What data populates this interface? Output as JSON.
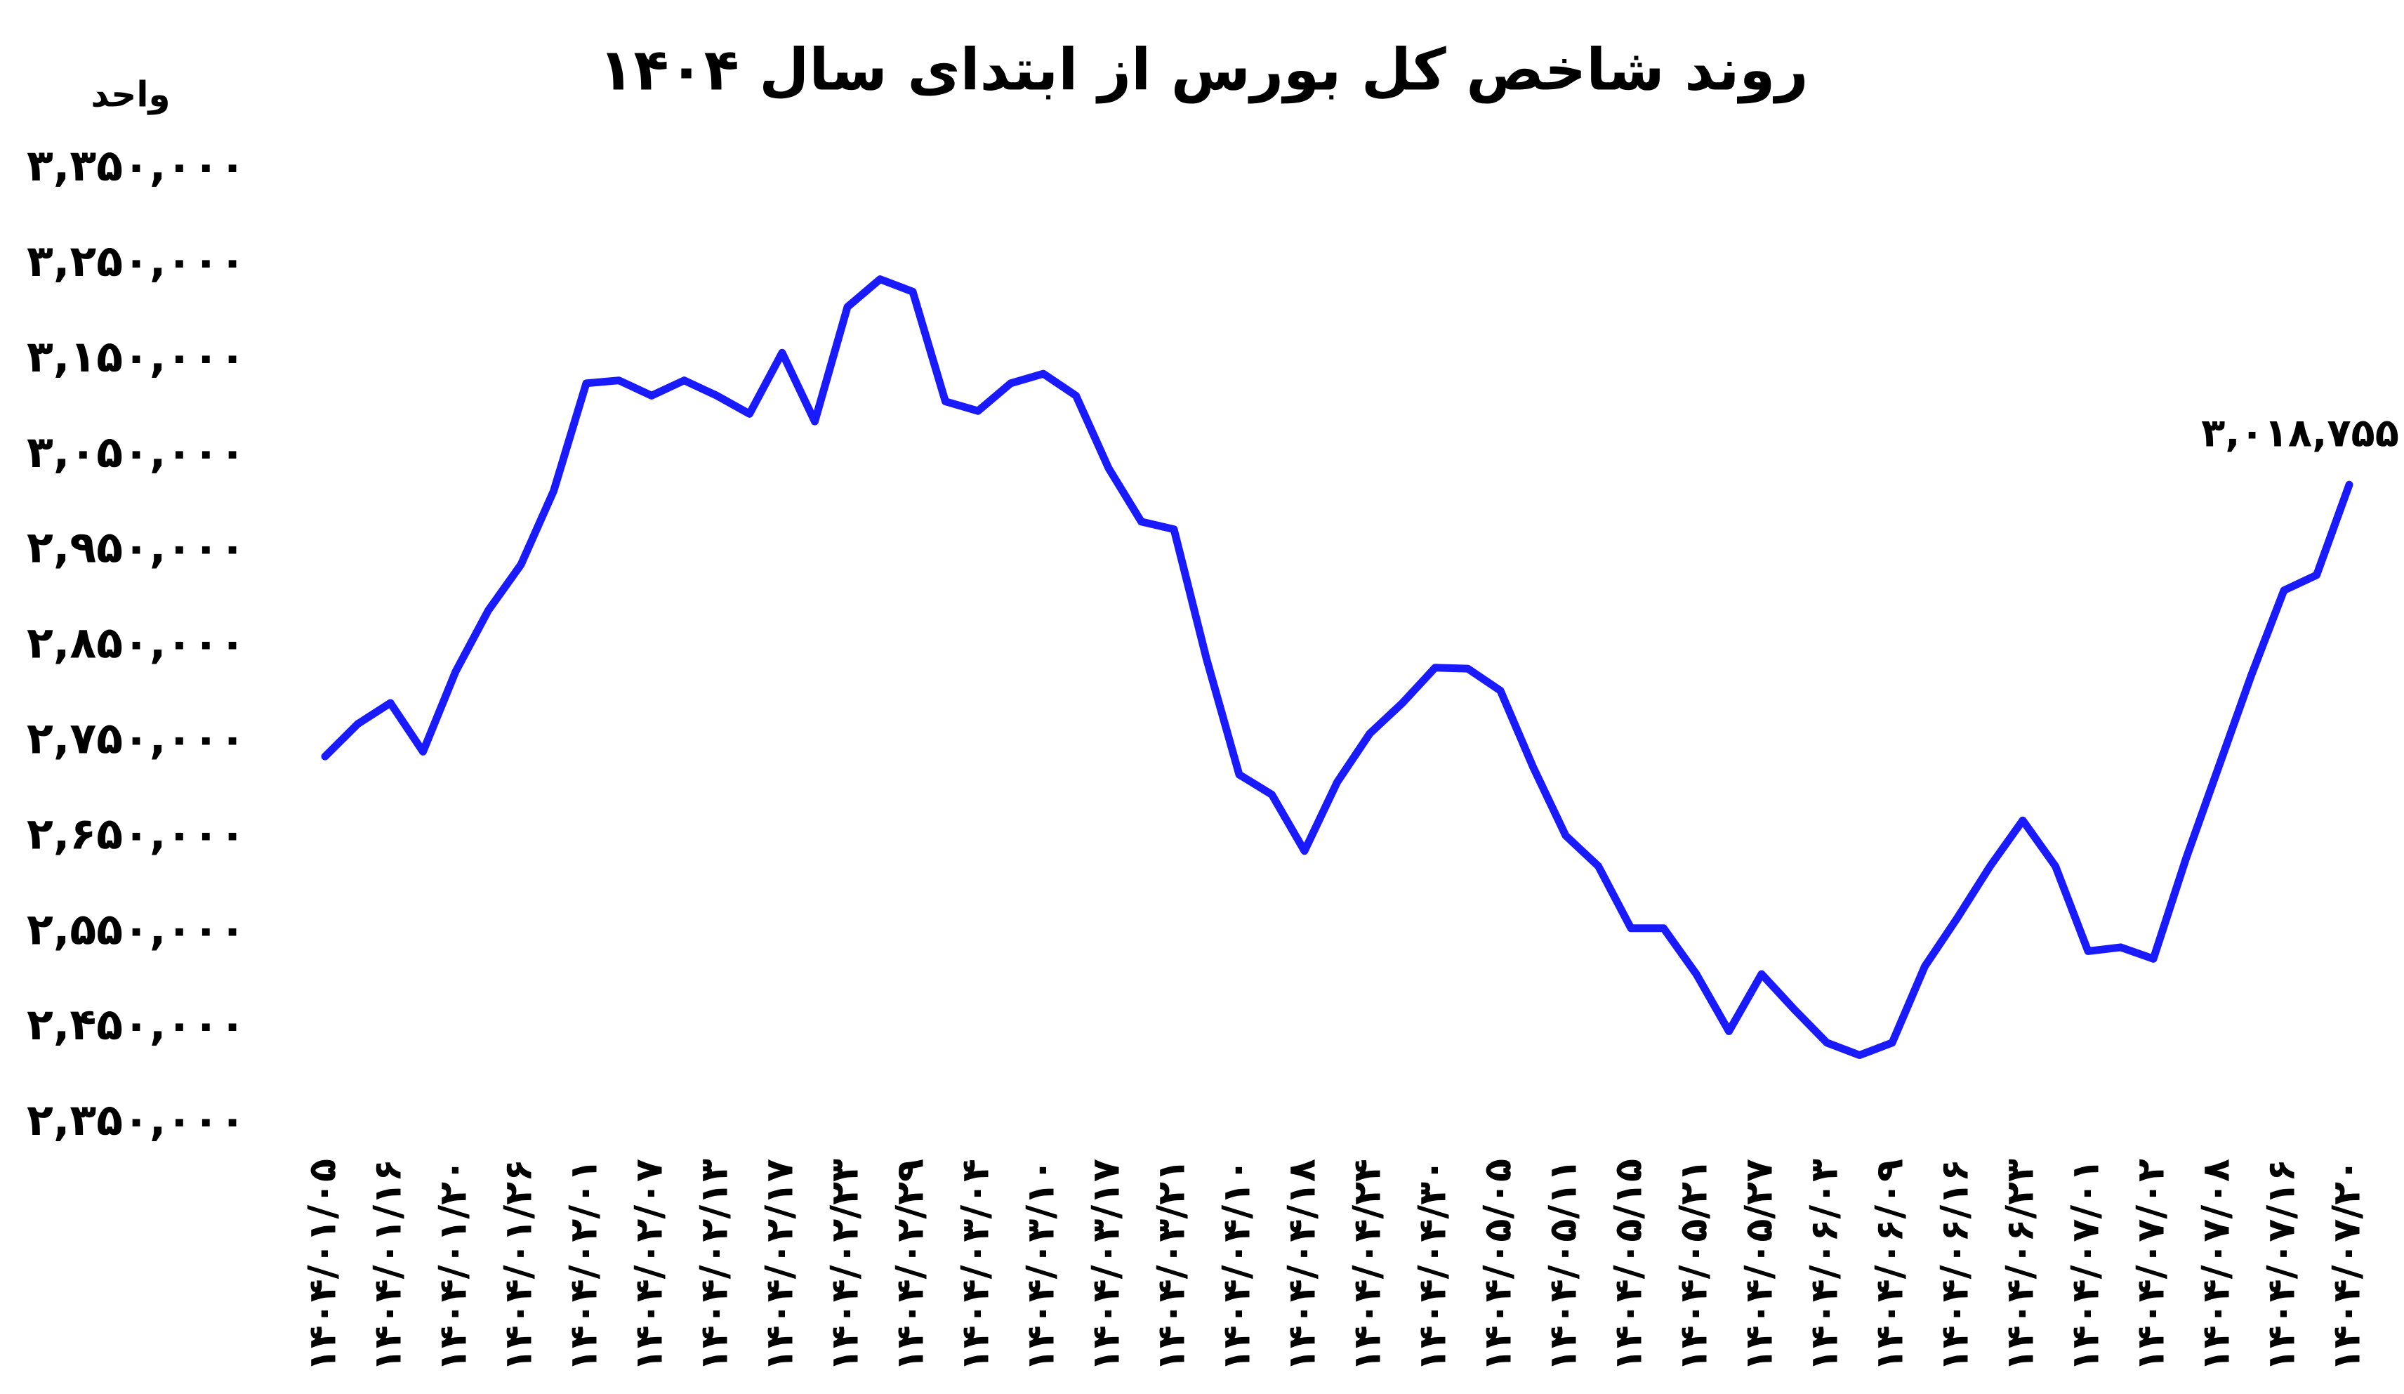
{
  "chart_data": {
    "type": "line",
    "title": "روند شاخص کل بورس از ابتدای سال ۱۴۰۴",
    "y_label": "واحد",
    "categories": [
      "۱۴۰۴/۰۱/۰۵",
      null,
      "۱۴۰۴/۰۱/۱۶",
      null,
      "۱۴۰۴/۰۱/۲۰",
      null,
      "۱۴۰۴/۰۱/۲۶",
      null,
      "۱۴۰۴/۰۲/۰۱",
      null,
      "۱۴۰۴/۰۲/۰۷",
      null,
      "۱۴۰۴/۰۲/۱۳",
      null,
      "۱۴۰۴/۰۲/۱۷",
      null,
      "۱۴۰۴/۰۲/۲۳",
      null,
      "۱۴۰۴/۰۲/۲۹",
      null,
      "۱۴۰۴/۰۳/۰۴",
      null,
      "۱۴۰۴/۰۳/۱۰",
      null,
      "۱۴۰۴/۰۳/۱۷",
      null,
      "۱۴۰۴/۰۳/۲۱",
      null,
      "۱۴۰۴/۰۴/۱۰",
      null,
      "۱۴۰۴/۰۴/۱۸",
      null,
      "۱۴۰۴/۰۴/۲۴",
      null,
      "۱۴۰۴/۰۴/۳۰",
      null,
      "۱۴۰۴/۰۵/۰۵",
      null,
      "۱۴۰۴/۰۵/۱۱",
      null,
      "۱۴۰۴/۰۵/۱۵",
      null,
      "۱۴۰۴/۰۵/۲۱",
      null,
      "۱۴۰۴/۰۵/۲۷",
      null,
      "۱۴۰۴/۰۶/۰۳",
      null,
      "۱۴۰۴/۰۶/۰۹",
      null,
      "۱۴۰۴/۰۶/۱۶",
      null,
      "۱۴۰۴/۰۶/۲۳",
      null,
      "۱۴۰۴/۰۷/۰۱",
      null,
      "۱۴۰۴/۰۷/۰۲",
      null,
      "۱۴۰۴/۰۷/۰۸",
      null,
      "۱۴۰۴/۰۷/۱۶",
      null,
      "۱۴۰۴/۰۷/۲۰"
    ],
    "values": [
      2734000,
      2768000,
      2790000,
      2739000,
      2823000,
      2887000,
      2935000,
      3012000,
      3125000,
      3128000,
      3112000,
      3128000,
      3112000,
      3093000,
      3157000,
      3085000,
      3205000,
      3234000,
      3221000,
      3106000,
      3096000,
      3125000,
      3135000,
      3112000,
      3036000,
      2980000,
      2972000,
      2836000,
      2715000,
      2694000,
      2635000,
      2707000,
      2758000,
      2790000,
      2827000,
      2826000,
      2803000,
      2723000,
      2651000,
      2619000,
      2554000,
      2554000,
      2506000,
      2446000,
      2506000,
      2469000,
      2434000,
      2421000,
      2434000,
      2514000,
      2565000,
      2619000,
      2667000,
      2619000,
      2530000,
      2534000,
      2522000,
      2627000,
      2723000,
      2819000,
      2908000,
      2924000,
      3018755
    ],
    "value_labels": [
      null,
      null,
      null,
      null,
      null,
      null,
      null,
      null,
      null,
      null,
      null,
      null,
      null,
      null,
      null,
      null,
      null,
      null,
      null,
      null,
      null,
      null,
      null,
      null,
      null,
      null,
      null,
      null,
      null,
      null,
      null,
      null,
      null,
      null,
      null,
      null,
      null,
      null,
      null,
      null,
      null,
      null,
      null,
      null,
      null,
      null,
      null,
      null,
      null,
      null,
      null,
      null,
      null,
      null,
      null,
      null,
      null,
      null,
      null,
      null,
      null,
      null,
      "۳,۰۱۸,۷۵۵"
    ],
    "color": "#1a1aff",
    "ylim": [
      2350000,
      3350000
    ],
    "yticks": [
      {
        "value": 2350000,
        "label": "۲,۳۵۰,۰۰۰"
      },
      {
        "value": 2450000,
        "label": "۲,۴۵۰,۰۰۰"
      },
      {
        "value": 2550000,
        "label": "۲,۵۵۰,۰۰۰"
      },
      {
        "value": 2650000,
        "label": "۲,۶۵۰,۰۰۰"
      },
      {
        "value": 2750000,
        "label": "۲,۷۵۰,۰۰۰"
      },
      {
        "value": 2850000,
        "label": "۲,۸۵۰,۰۰۰"
      },
      {
        "value": 2950000,
        "label": "۲,۹۵۰,۰۰۰"
      },
      {
        "value": 3050000,
        "label": "۳,۰۵۰,۰۰۰"
      },
      {
        "value": 3150000,
        "label": "۳,۱۵۰,۰۰۰"
      },
      {
        "value": 3250000,
        "label": "۳,۲۵۰,۰۰۰"
      },
      {
        "value": 3350000,
        "label": "۳,۳۵۰,۰۰۰"
      }
    ],
    "grid": false
  }
}
